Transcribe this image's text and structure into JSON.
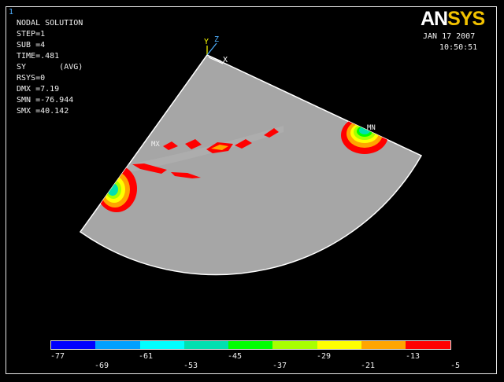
{
  "window": {
    "number": "1"
  },
  "solution": {
    "title": "NODAL SOLUTION",
    "lines": [
      "STEP=1",
      "SUB =4",
      "TIME=.481",
      "SY       (AVG)",
      "RSYS=0",
      "DMX =7.19",
      "SMN =-76.944",
      "SMX =40.142"
    ]
  },
  "brand": {
    "logo_an": "AN",
    "logo_sys": "SYS"
  },
  "timestamp": {
    "date": "JAN 17 2007",
    "time": "10:50:51"
  },
  "triad": {
    "y": "Y",
    "z": "Z",
    "x": "X"
  },
  "markers": {
    "mx": "MX",
    "mn": "MN"
  },
  "legend": {
    "colors": [
      "#0000ff",
      "#00a0ff",
      "#00ffff",
      "#00e0b0",
      "#00ff00",
      "#a8ff00",
      "#ffff00",
      "#ffa500",
      "#ff0000"
    ],
    "ticks_lower": [
      "-77",
      "-61",
      "-45",
      "-29",
      "-13"
    ],
    "ticks_upper": [
      "-69",
      "-53",
      "-37",
      "-21",
      "-5"
    ]
  },
  "model_color": "#a6a6a6"
}
